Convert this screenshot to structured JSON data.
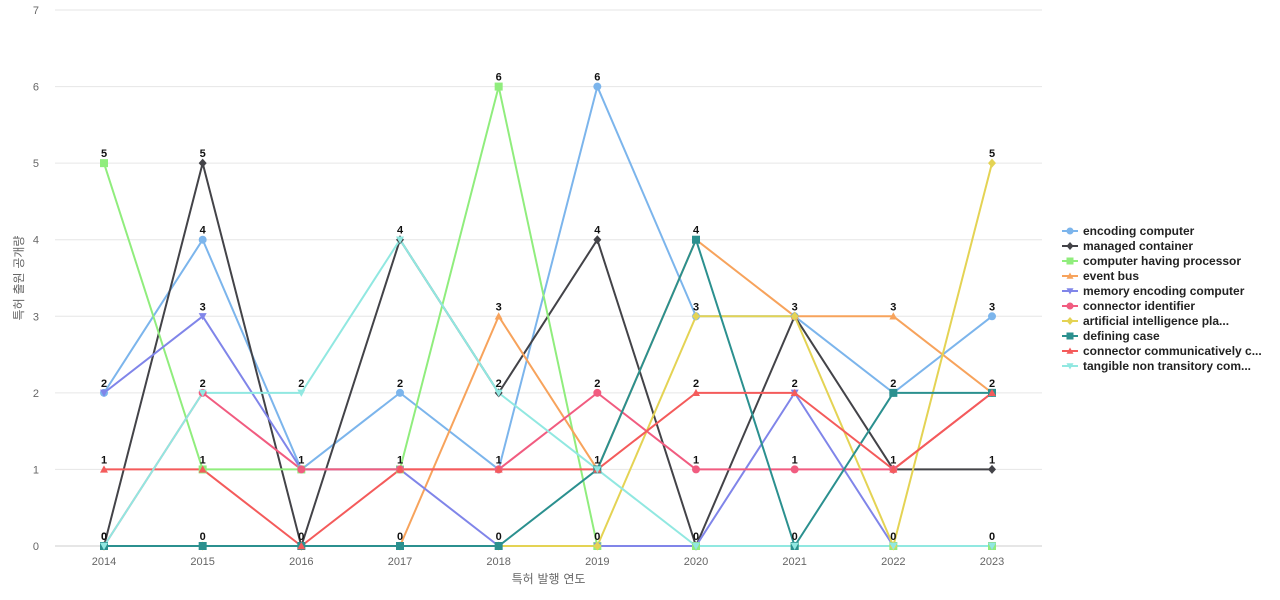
{
  "chart_data": {
    "type": "line",
    "title": "",
    "xlabel": "특허 발행 연도",
    "ylabel": "특허 출원 공개량",
    "ylim": [
      0,
      7
    ],
    "yticks": [
      0,
      1,
      2,
      3,
      4,
      5,
      6,
      7
    ],
    "grid": true,
    "legend_position": "right",
    "data_labels": true,
    "x": [
      "2014",
      "2015",
      "2016",
      "2017",
      "2018",
      "2019",
      "2020",
      "2021",
      "2022",
      "2023"
    ],
    "series": [
      {
        "name": "encoding computer",
        "color": "#7cb5ec",
        "marker": "circle",
        "values": [
          2,
          4,
          1,
          2,
          1,
          6,
          3,
          3,
          2,
          3
        ]
      },
      {
        "name": "managed container",
        "color": "#434348",
        "marker": "diamond",
        "values": [
          0,
          5,
          0,
          4,
          2,
          4,
          0,
          3,
          1,
          1
        ]
      },
      {
        "name": "computer having processor",
        "color": "#90ed7d",
        "marker": "square",
        "values": [
          5,
          1,
          1,
          1,
          6,
          0,
          0,
          0,
          0,
          0
        ]
      },
      {
        "name": "event bus",
        "color": "#f7a35c",
        "marker": "triangle",
        "values": [
          0,
          0,
          0,
          0,
          3,
          1,
          4,
          3,
          3,
          2
        ]
      },
      {
        "name": "memory encoding computer",
        "color": "#8085e9",
        "marker": "triangle-down",
        "values": [
          2,
          3,
          1,
          1,
          0,
          0,
          0,
          2,
          0,
          0
        ]
      },
      {
        "name": "connector identifier",
        "color": "#f15c80",
        "marker": "circle",
        "values": [
          0,
          2,
          1,
          1,
          1,
          2,
          1,
          1,
          1,
          2
        ]
      },
      {
        "name": "artificial intelligence pla...",
        "color": "#e4d354",
        "marker": "diamond",
        "values": [
          0,
          0,
          0,
          0,
          0,
          0,
          3,
          3,
          0,
          5
        ]
      },
      {
        "name": "defining case",
        "color": "#2b908f",
        "marker": "square",
        "values": [
          0,
          0,
          0,
          0,
          0,
          1,
          4,
          0,
          2,
          2
        ]
      },
      {
        "name": "connector communicatively c...",
        "color": "#f45b5b",
        "marker": "triangle",
        "values": [
          1,
          1,
          0,
          1,
          1,
          1,
          2,
          2,
          1,
          2
        ]
      },
      {
        "name": "tangible non transitory com...",
        "color": "#91e8e1",
        "marker": "triangle-down",
        "values": [
          0,
          2,
          2,
          4,
          2,
          1,
          0,
          0,
          0,
          0
        ]
      }
    ],
    "point_labels": [
      {
        "x": "2014",
        "values": [
          0,
          5,
          2,
          1,
          0
        ]
      },
      {
        "x": "2015",
        "values": [
          0,
          1,
          2,
          3,
          4,
          5
        ]
      },
      {
        "x": "2016",
        "values": [
          0,
          1,
          2
        ]
      },
      {
        "x": "2017",
        "values": [
          0,
          1,
          2,
          4
        ]
      },
      {
        "x": "2018",
        "values": [
          0,
          1,
          2,
          3,
          6
        ]
      },
      {
        "x": "2019",
        "values": [
          0,
          1,
          2,
          4,
          6
        ]
      },
      {
        "x": "2020",
        "values": [
          0,
          1,
          2,
          3,
          4
        ]
      },
      {
        "x": "2021",
        "values": [
          0,
          1,
          2,
          3
        ]
      },
      {
        "x": "2022",
        "values": [
          0,
          1,
          2,
          3
        ]
      },
      {
        "x": "2023",
        "values": [
          0,
          1,
          2,
          3,
          5
        ]
      }
    ]
  }
}
